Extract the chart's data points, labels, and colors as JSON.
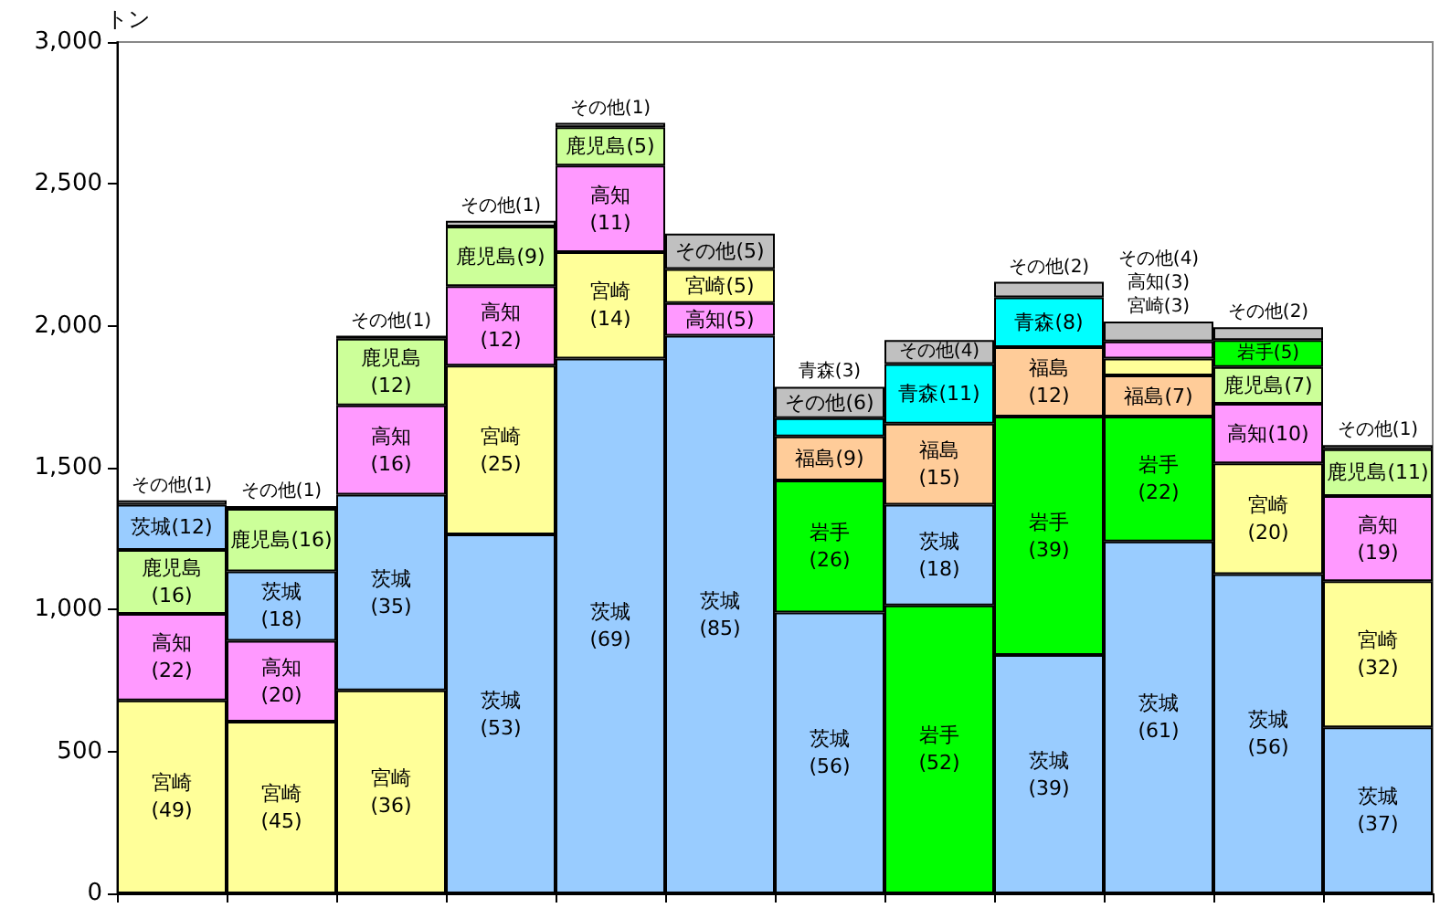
{
  "chart_data": {
    "type": "bar",
    "stacked": true,
    "ylabel": "トン",
    "categories": [
      null,
      null,
      null,
      null,
      null,
      null,
      null,
      null,
      null,
      null,
      null,
      null
    ],
    "ylim": [
      0,
      3000
    ],
    "yticks": [
      0,
      500,
      {
        "value": 1000,
        "label": "1,000"
      },
      {
        "value": 1500,
        "label": "1,500"
      },
      {
        "value": 2000,
        "label": "2,000"
      },
      {
        "value": 2500,
        "label": "2,500"
      },
      {
        "value": 3000,
        "label": "3,000"
      }
    ],
    "series": [
      {
        "values": [
          680,
          605,
          715,
          1265,
          1885,
          1965,
          990,
          1015,
          840,
          1240,
          1125,
          585
        ],
        "colors": [
          "#ffff99",
          "#ffff99",
          "#ffff99",
          "#99ccff",
          "#99ccff",
          "#99ccff",
          "#99ccff",
          "#00ff00",
          "#99ccff",
          "#99ccff",
          "#99ccff",
          "#99ccff"
        ],
        "value_labels": [
          "宮崎(49)",
          "宮崎(45)",
          "宮崎(36)",
          "茨城(53)",
          "茨城(69)",
          "茨城(85)",
          "茨城(56)",
          "岩手(52)",
          "茨城(39)",
          "茨城(61)",
          "茨城(56)",
          "茨城(37)"
        ]
      },
      {
        "values": [
          305,
          285,
          690,
          595,
          375,
          115,
          465,
          355,
          840,
          440,
          390,
          515
        ],
        "colors": [
          "#ff99ff",
          "#ff99ff",
          "#99ccff",
          "#ffff99",
          "#ffff99",
          "#ff99ff",
          "#00ff00",
          "#99ccff",
          "#00ff00",
          "#00ff00",
          "#ffff99",
          "#ffff99"
        ],
        "value_labels": [
          "高知(22)",
          "高知(20)",
          "茨城(35)",
          "宮崎(25)",
          "宮崎(14)",
          "高知(5)",
          "岩手(26)",
          "茨城(18)",
          "岩手(39)",
          "岩手(22)",
          "宮崎(20)",
          "宮崎(32)"
        ]
      },
      {
        "values": [
          225,
          245,
          315,
          280,
          305,
          120,
          155,
          285,
          245,
          145,
          210,
          300
        ],
        "colors": [
          "#ccff99",
          "#99ccff",
          "#ff99ff",
          "#ff99ff",
          "#ff99ff",
          "#ffff99",
          "#ffcc99",
          "#ffcc99",
          "#ffcc99",
          "#ffcc99",
          "#ff99ff",
          "#ff99ff"
        ],
        "value_labels": [
          "鹿児島(16)",
          "茨城(18)",
          "高知(16)",
          "高知(12)",
          "高知(11)",
          "宮崎(5)",
          "福島(9)",
          "福島(15)",
          "福島(12)",
          "福島(7)",
          "高知(10)",
          "高知(19)"
        ]
      },
      {
        "values": [
          160,
          220,
          235,
          210,
          135,
          125,
          65,
          210,
          175,
          60,
          130,
          165
        ],
        "colors": [
          "#99ccff",
          "#ccff99",
          "#ccff99",
          "#ccff99",
          "#ccff99",
          "#c0c0c0",
          "#00ffff",
          "#00ffff",
          "#00ffff",
          "#ffff99",
          "#ccff99",
          "#ccff99"
        ],
        "value_labels": [
          "茨城(12)",
          "鹿児島(16)",
          "鹿児島(12)",
          "鹿児島(9)",
          "鹿児島(5)",
          "その他(5)",
          "青森(3)",
          "青森(11)",
          "青森(8)",
          "宮崎(3)",
          "鹿児島(7)",
          "鹿児島(11)"
        ]
      },
      {
        "values": [
          15,
          10,
          10,
          20,
          15,
          null,
          110,
          85,
          55,
          60,
          95,
          15
        ],
        "colors": [
          "#c0c0c0",
          "#c0c0c0",
          "#c0c0c0",
          "#c0c0c0",
          "#c0c0c0",
          null,
          "#c0c0c0",
          "#c0c0c0",
          "#c0c0c0",
          "#ff99ff",
          "#00ff00",
          "#c0c0c0"
        ],
        "value_labels": [
          "その他(1)",
          "その他(1)",
          "その他(1)",
          "その他(1)",
          "その他(1)",
          null,
          "その他(6)",
          "その他(4)",
          "その他(2)",
          "高知(3)",
          "岩手(5)",
          "その他(1)"
        ]
      },
      {
        "values": [
          null,
          null,
          null,
          null,
          null,
          null,
          null,
          null,
          null,
          70,
          45,
          null
        ],
        "colors": [
          null,
          null,
          null,
          null,
          null,
          null,
          null,
          null,
          null,
          "#c0c0c0",
          "#c0c0c0",
          null
        ],
        "value_labels": [
          null,
          null,
          null,
          null,
          null,
          null,
          null,
          null,
          null,
          "その他(4)",
          "その他(2)",
          null
        ]
      }
    ]
  }
}
